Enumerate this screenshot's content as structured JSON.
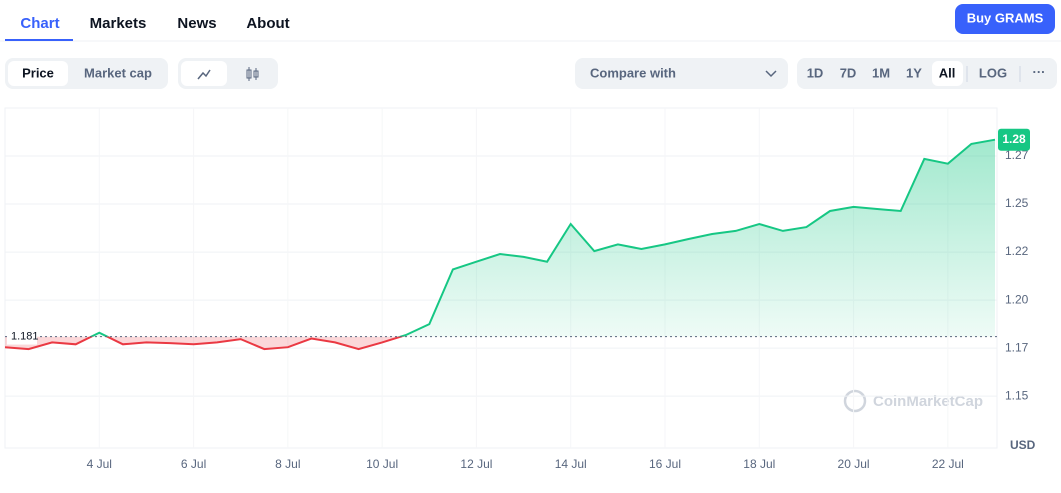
{
  "nav": {
    "tabs": [
      "Chart",
      "Markets",
      "News",
      "About"
    ],
    "button": "Buy GRAMS"
  },
  "controls": {
    "views": [
      "Price",
      "Market cap"
    ],
    "compare": "Compare with",
    "ranges": [
      "1D",
      "7D",
      "1M",
      "1Y",
      "All",
      "LOG"
    ]
  },
  "chart_data": {
    "type": "line",
    "categories": [
      null,
      null,
      null,
      null,
      "4 Jul",
      null,
      null,
      null,
      "6 Jul",
      null,
      null,
      null,
      "8 Jul",
      null,
      null,
      null,
      "10 Jul",
      null,
      null,
      null,
      "12 Jul",
      null,
      null,
      null,
      "14 Jul",
      null,
      null,
      null,
      "16 Jul",
      null,
      null,
      null,
      "18 Jul",
      null,
      null,
      null,
      "20 Jul",
      null,
      null,
      null,
      "22 Jul",
      null,
      null
    ],
    "values": [
      1.1755,
      1.1745,
      1.178,
      1.177,
      1.183,
      1.177,
      1.178,
      1.1776,
      1.177,
      1.178,
      1.1797,
      1.1745,
      1.1755,
      1.18,
      1.178,
      1.1745,
      1.178,
      1.1818,
      1.1875,
      1.216,
      1.22,
      1.224,
      1.2225,
      1.22,
      1.2396,
      1.2255,
      1.229,
      1.2266,
      1.229,
      1.2318,
      1.2344,
      1.236,
      1.2396,
      1.236,
      1.238,
      1.2464,
      1.2485,
      1.2474,
      1.2464,
      1.2735,
      1.271,
      1.2813,
      1.2835
    ],
    "price_label": "1.28",
    "baseline": 1.181,
    "ylim": [
      1.123,
      1.3
    ],
    "yticks": [
      {
        "value": 1.15,
        "label": "1.15"
      },
      {
        "value": 1.175,
        "label": "1.17"
      },
      {
        "value": 1.2,
        "label": "1.20"
      },
      {
        "value": 1.225,
        "label": "1.22"
      },
      {
        "value": 1.25,
        "label": "1.25"
      },
      {
        "value": 1.275,
        "label": "1.27"
      }
    ],
    "grid": true,
    "up_color": "#16c784",
    "down_color": "#ea3943",
    "currency": "USD",
    "watermark": "CoinMarketCap"
  }
}
